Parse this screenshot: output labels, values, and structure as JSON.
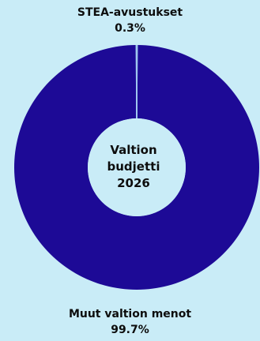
{
  "chart_data": {
    "type": "pie",
    "donut": true,
    "center_label": [
      "Valtion",
      "budjetti",
      "2026"
    ],
    "slices": [
      {
        "name": "STEA-avustukset",
        "value": 0.3,
        "value_label": "0.3%",
        "color": "#9ec7ef"
      },
      {
        "name": "Muut valtion menot",
        "value": 99.7,
        "value_label": "99.7%",
        "color": "#1d0a96"
      }
    ],
    "background": "#c9ecf7",
    "hole_color": "#c9ecf7"
  }
}
